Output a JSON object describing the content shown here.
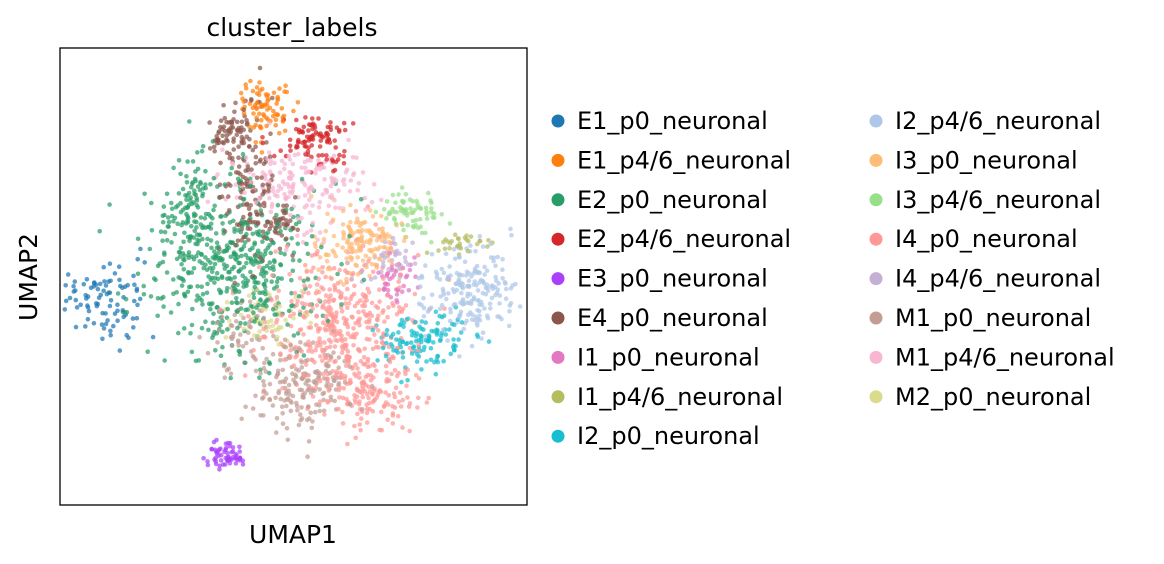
{
  "chart_data": {
    "type": "scatter",
    "title": "cluster_labels",
    "xlabel": "UMAP1",
    "ylabel": "UMAP2",
    "xlim": [
      -6.5,
      13.5
    ],
    "ylim": [
      -7.5,
      12.5
    ],
    "grid": false,
    "ticks": false,
    "legend_placement": "right, two columns",
    "series": [
      {
        "name": "E1_p0_neuronal",
        "color": "#1f77b4",
        "blobs": [
          {
            "c": [
              -4.5,
              1.5
            ],
            "s": [
              0.9,
              0.9
            ],
            "n": 90,
            "r": -25
          }
        ]
      },
      {
        "name": "E1_p4/6_neuronal",
        "color": "#ff7f0e",
        "blobs": [
          {
            "c": [
              2.3,
              10.0
            ],
            "s": [
              0.6,
              0.8
            ],
            "n": 80,
            "r": 0
          }
        ]
      },
      {
        "name": "E2_p0_neuronal",
        "color": "#279e68",
        "blobs": [
          {
            "c": [
              0.8,
              3.0
            ],
            "s": [
              1.8,
              1.8
            ],
            "n": 520,
            "r": 0
          },
          {
            "c": [
              -0.8,
              5.6
            ],
            "s": [
              0.5,
              1.2
            ],
            "n": 70,
            "r": 0
          }
        ]
      },
      {
        "name": "E2_p4/6_neuronal",
        "color": "#d62728",
        "blobs": [
          {
            "c": [
              4.4,
              8.5
            ],
            "s": [
              0.8,
              0.55
            ],
            "n": 100,
            "r": 0
          }
        ]
      },
      {
        "name": "E3_p0_neuronal",
        "color": "#aa40fc",
        "blobs": [
          {
            "c": [
              0.6,
              -5.3
            ],
            "s": [
              0.45,
              0.3
            ],
            "n": 60,
            "r": 0
          }
        ]
      },
      {
        "name": "E4_p0_neuronal",
        "color": "#8c564b",
        "blobs": [
          {
            "c": [
              0.8,
              8.8
            ],
            "s": [
              0.5,
              0.55
            ],
            "n": 60,
            "r": 0
          },
          {
            "c": [
              1.6,
              6.5
            ],
            "s": [
              0.55,
              1.6
            ],
            "n": 130,
            "r": 0
          },
          {
            "c": [
              2.9,
              4.7
            ],
            "s": [
              0.4,
              0.5
            ],
            "n": 40,
            "r": 0
          }
        ]
      },
      {
        "name": "I1_p0_neuronal",
        "color": "#e377c2",
        "blobs": [
          {
            "c": [
              7.8,
              2.2
            ],
            "s": [
              0.5,
              0.5
            ],
            "n": 40,
            "r": 0
          }
        ]
      },
      {
        "name": "I1_p4/6_neuronal",
        "color": "#b5bd61",
        "blobs": [
          {
            "c": [
              10.7,
              4.0
            ],
            "s": [
              0.5,
              0.25
            ],
            "n": 30,
            "r": 0
          }
        ]
      },
      {
        "name": "I2_p0_neuronal",
        "color": "#17becf",
        "blobs": [
          {
            "c": [
              9.0,
              -0.3
            ],
            "s": [
              1.0,
              0.6
            ],
            "n": 120,
            "r": 0
          }
        ]
      },
      {
        "name": "I2_p4/6_neuronal",
        "color": "#aec7e8",
        "blobs": [
          {
            "c": [
              11.0,
              1.8
            ],
            "s": [
              1.0,
              1.0
            ],
            "n": 200,
            "r": 0
          }
        ]
      },
      {
        "name": "I3_p0_neuronal",
        "color": "#ffbb78",
        "blobs": [
          {
            "c": [
              6.3,
              4.0
            ],
            "s": [
              1.0,
              0.7
            ],
            "n": 150,
            "r": 0
          }
        ]
      },
      {
        "name": "I3_p4/6_neuronal",
        "color": "#98df8a",
        "blobs": [
          {
            "c": [
              8.6,
              5.3
            ],
            "s": [
              0.7,
              0.5
            ],
            "n": 70,
            "r": 0
          }
        ]
      },
      {
        "name": "I4_p0_neuronal",
        "color": "#ff9896",
        "blobs": [
          {
            "c": [
              5.5,
              0.2
            ],
            "s": [
              1.6,
              1.7
            ],
            "n": 420,
            "r": 0
          },
          {
            "c": [
              6.9,
              -2.7
            ],
            "s": [
              0.9,
              0.7
            ],
            "n": 110,
            "r": 0
          }
        ]
      },
      {
        "name": "I4_p4/6_neuronal",
        "color": "#c5b0d5",
        "blobs": [
          {
            "c": [
              7.5,
              3.0
            ],
            "s": [
              0.6,
              0.6
            ],
            "n": 40,
            "r": 0
          }
        ]
      },
      {
        "name": "M1_p0_neuronal",
        "color": "#c49c94",
        "blobs": [
          {
            "c": [
              3.9,
              -2.3
            ],
            "s": [
              1.0,
              0.9
            ],
            "n": 180,
            "r": 0
          },
          {
            "c": [
              1.3,
              0.0
            ],
            "s": [
              0.8,
              1.0
            ],
            "n": 60,
            "r": 0
          }
        ]
      },
      {
        "name": "M1_p4/6_neuronal",
        "color": "#f7b6d2",
        "blobs": [
          {
            "c": [
              3.7,
              6.5
            ],
            "s": [
              1.4,
              0.9
            ],
            "n": 180,
            "r": 0
          }
        ]
      },
      {
        "name": "M2_p0_neuronal",
        "color": "#dbdb8d",
        "blobs": [
          {
            "c": [
              2.6,
              0.8
            ],
            "s": [
              0.9,
              0.8
            ],
            "n": 60,
            "r": 0
          }
        ]
      }
    ]
  }
}
